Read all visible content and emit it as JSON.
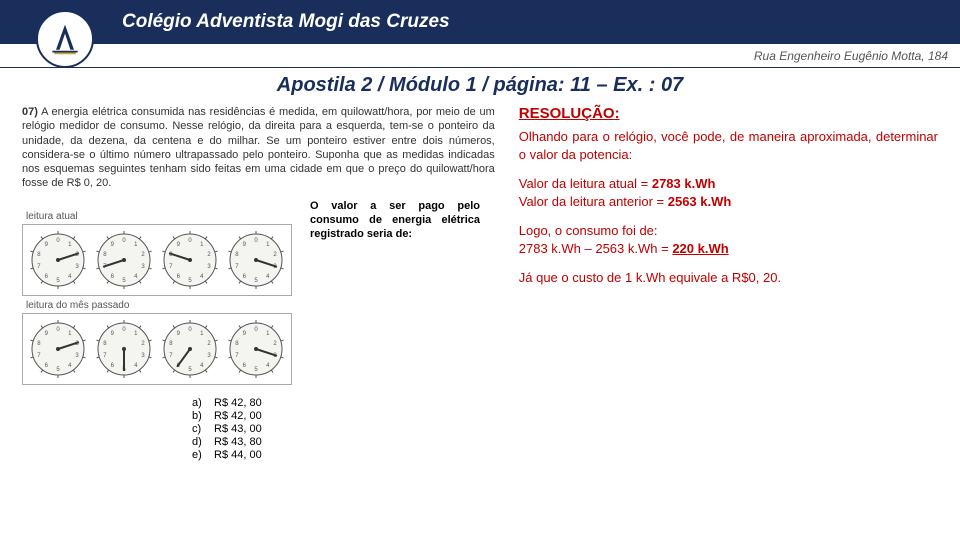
{
  "header": {
    "school_name": "Colégio Adventista Mogi das Cruzes",
    "address": "Rua Engenheiro Eugênio Motta, 184"
  },
  "page_title": "Apostila 2 / Módulo 1 / página: 11 – Ex. : 07",
  "problem": {
    "number": "07)",
    "text": "A energia elétrica consumida nas residências é medida, em quilowatt/hora, por meio de um relógio medidor de consumo. Nesse relógio, da direita para a esquerda, tem-se o ponteiro da unidade, da dezena, da centena e do milhar. Se um ponteiro estiver entre dois números, considera-se o último número ultrapassado pelo ponteiro. Suponha que as medidas indicadas nos esquemas seguintes tenham sido feitas em uma cidade em que o preço do quilowatt/hora fosse de R$ 0, 20."
  },
  "dials": {
    "current_label": "leitura atual",
    "previous_label": "leitura do mês passado",
    "dial_size": 62,
    "dial_radius": 26,
    "dial_fill": "#f4f4f0",
    "dial_stroke": "#555",
    "tick_color": "#555",
    "num_color": "#555",
    "num_fontsize": 6,
    "hand_color": "#333",
    "current_angles": [
      72,
      252,
      288,
      108
    ],
    "previous_angles": [
      72,
      180,
      216,
      108
    ]
  },
  "mid_text": "O valor a ser pago pelo consumo de energia elétrica registrado seria de:",
  "options": [
    {
      "letter": "a)",
      "value": "R$ 42, 80"
    },
    {
      "letter": "b)",
      "value": "R$ 42, 00"
    },
    {
      "letter": "c)",
      "value": "R$ 43, 00"
    },
    {
      "letter": "d)",
      "value": "R$ 43, 80"
    },
    {
      "letter": "e)",
      "value": "R$ 44, 00"
    }
  ],
  "resolution": {
    "title": "RESOLUÇÃO:",
    "p1": "Olhando para o relógio, você pode, de maneira aproximada, determinar o valor da potencia:",
    "p2a": "Valor da leitura atual = ",
    "p2a_bold": "2783 k.Wh",
    "p2b": "Valor da leitura anterior = ",
    "p2b_bold": "2563 k.Wh",
    "p3a": "Logo, o consumo foi de:",
    "p3b": "2783 k.Wh – 2563 k.Wh = ",
    "p3b_bold": "220 k.Wh",
    "p4": "Já que o custo de 1 k.Wh equivale a R$0, 20."
  }
}
